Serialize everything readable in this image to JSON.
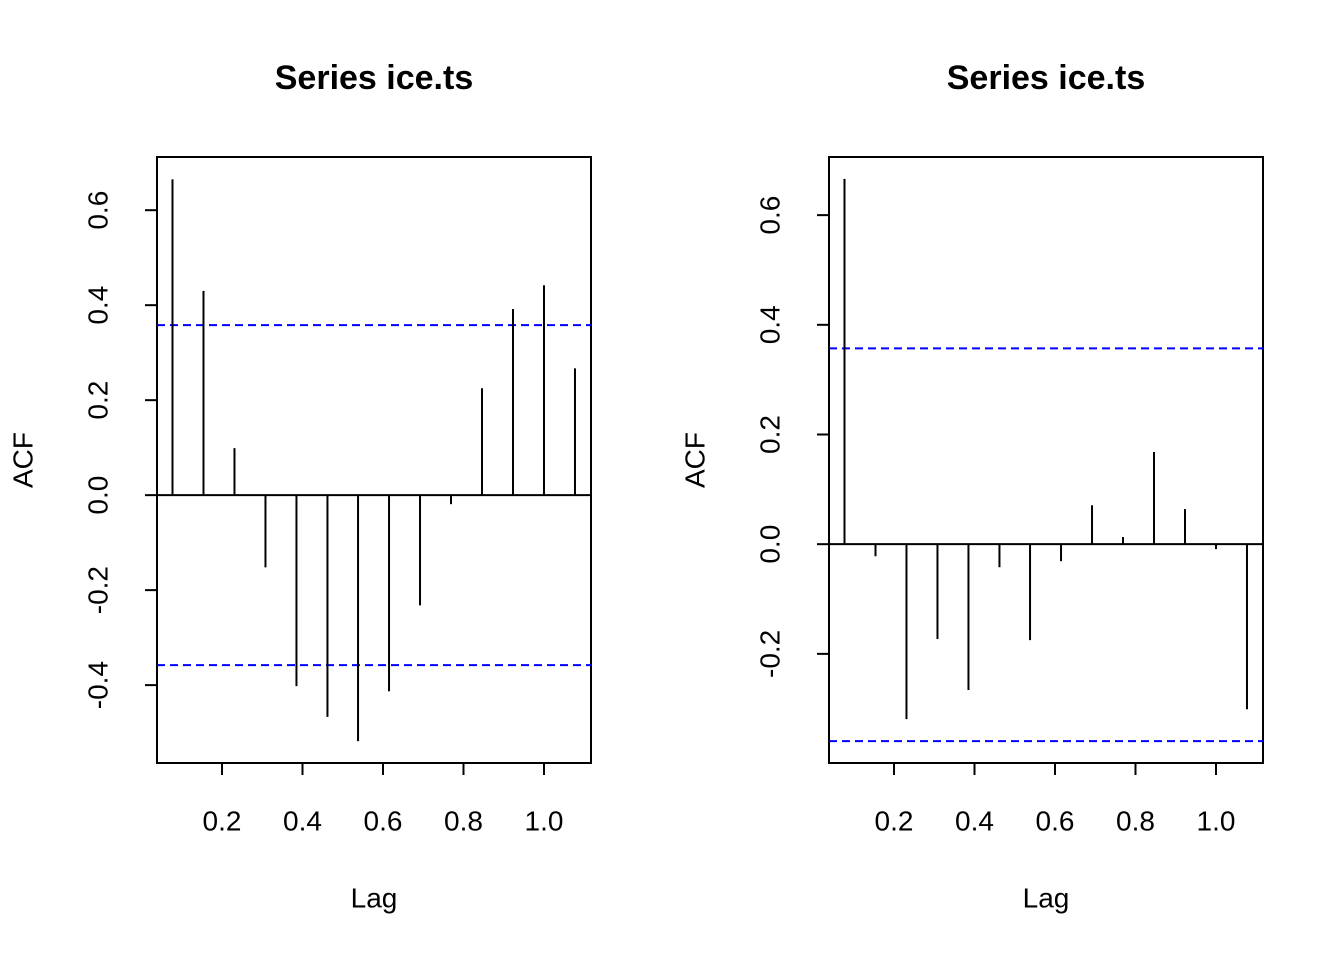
{
  "chart_data": [
    {
      "type": "bar",
      "title": "Series ice.ts",
      "xlabel": "Lag",
      "ylabel": "ACF",
      "color": "#000000",
      "x": [
        0.077,
        0.154,
        0.231,
        0.308,
        0.385,
        0.462,
        0.538,
        0.615,
        0.692,
        0.769,
        0.846,
        0.923,
        1.0,
        1.077
      ],
      "values": [
        0.665,
        0.43,
        0.099,
        -0.152,
        -0.402,
        -0.467,
        -0.518,
        -0.413,
        -0.232,
        -0.019,
        0.225,
        0.392,
        0.442,
        0.267
      ],
      "xlim": [
        0.0385,
        1.1168
      ],
      "ylim": [
        -0.564,
        0.712
      ],
      "xticks": [
        0.2,
        0.4,
        0.6,
        0.8,
        {
          "value": 1,
          "label": "1.0"
        }
      ],
      "yticks": [
        -0.4,
        -0.2,
        {
          "value": 0,
          "label": "0.0"
        },
        0.2,
        0.4,
        0.6
      ],
      "ci": [
        0.358,
        -0.358
      ],
      "ci_color": "#0000ff"
    },
    {
      "type": "bar",
      "title": "Series ice.ts",
      "xlabel": "Lag",
      "ylabel": "ACF",
      "color": "#000000",
      "x": [
        0.077,
        0.154,
        0.231,
        0.308,
        0.385,
        0.462,
        0.538,
        0.615,
        0.692,
        0.769,
        0.846,
        0.923,
        1.0,
        1.077
      ],
      "values": [
        0.666,
        -0.022,
        -0.319,
        -0.173,
        -0.266,
        -0.042,
        -0.175,
        -0.031,
        0.071,
        0.013,
        0.168,
        0.064,
        -0.009,
        -0.301
      ],
      "xlim": [
        0.0385,
        1.1168
      ],
      "ylim": [
        -0.399,
        0.706
      ],
      "xticks": [
        0.2,
        0.4,
        0.6,
        0.8,
        {
          "value": 1,
          "label": "1.0"
        }
      ],
      "yticks": [
        -0.2,
        {
          "value": 0,
          "label": "0.0"
        },
        0.2,
        0.4,
        0.6
      ],
      "ci": [
        0.357,
        -0.359
      ],
      "ci_color": "#0000ff"
    }
  ]
}
